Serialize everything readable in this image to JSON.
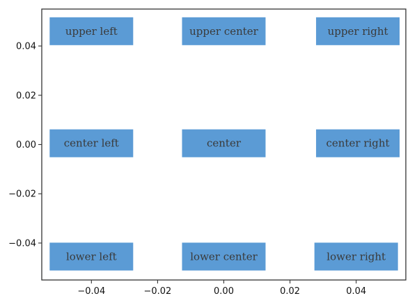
{
  "chart_data": {
    "type": "scatter",
    "title": "",
    "xlabel": "",
    "ylabel": "",
    "xlim": [
      -0.055,
      0.055
    ],
    "ylim": [
      -0.055,
      0.055
    ],
    "xticks": [
      -0.04,
      -0.02,
      0.0,
      0.02,
      0.04
    ],
    "xtick_labels": [
      "−0.04",
      "−0.02",
      "0.00",
      "0.02",
      "0.04"
    ],
    "yticks": [
      -0.04,
      -0.02,
      0.0,
      0.02,
      0.04
    ],
    "ytick_labels": [
      "−0.04",
      "−0.02",
      "0.00",
      "0.02",
      "0.04"
    ],
    "grid": false,
    "annotation_box_color": "#5b9bd5",
    "annotations": [
      {
        "text": "upper left",
        "x": -0.04,
        "y": 0.046
      },
      {
        "text": "upper center",
        "x": 0.0,
        "y": 0.046
      },
      {
        "text": "upper right",
        "x": 0.0405,
        "y": 0.046
      },
      {
        "text": "center left",
        "x": -0.04,
        "y": 0.0005
      },
      {
        "text": "center",
        "x": 0.0,
        "y": 0.0005
      },
      {
        "text": "center right",
        "x": 0.0405,
        "y": 0.0005
      },
      {
        "text": "lower left",
        "x": -0.04,
        "y": -0.0455
      },
      {
        "text": "lower center",
        "x": 0.0,
        "y": -0.0455
      },
      {
        "text": "lower right",
        "x": 0.04,
        "y": -0.0455
      }
    ]
  }
}
